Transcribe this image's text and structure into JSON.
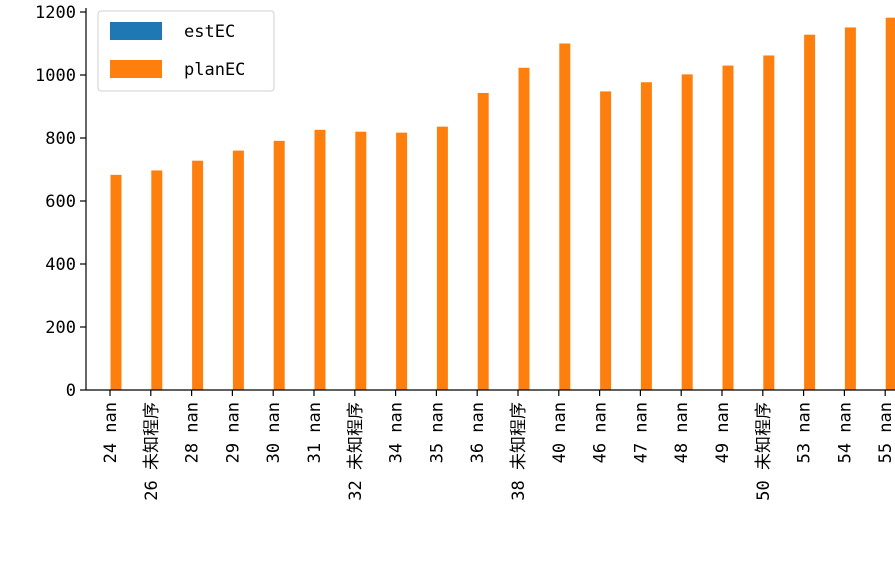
{
  "chart_data": {
    "type": "bar",
    "title": "",
    "xlabel": "",
    "ylabel": "",
    "ylim": [
      0,
      1200
    ],
    "yticks": [
      0,
      200,
      400,
      600,
      800,
      1000,
      1200
    ],
    "grid": false,
    "legend_position": "top-left",
    "categories": [
      [
        "24",
        "nan"
      ],
      [
        "26",
        "未知程序"
      ],
      [
        "28",
        "nan"
      ],
      [
        "29",
        "nan"
      ],
      [
        "30",
        "nan"
      ],
      [
        "31",
        "nan"
      ],
      [
        "32",
        "未知程序"
      ],
      [
        "34",
        "nan"
      ],
      [
        "35",
        "nan"
      ],
      [
        "36",
        "nan"
      ],
      [
        "38",
        "未知程序"
      ],
      [
        "40",
        "nan"
      ],
      [
        "46",
        "nan"
      ],
      [
        "47",
        "nan"
      ],
      [
        "48",
        "nan"
      ],
      [
        "49",
        "nan"
      ],
      [
        "50",
        "未知程序"
      ],
      [
        "53",
        "nan"
      ],
      [
        "54",
        "nan"
      ],
      [
        "55",
        "nan"
      ]
    ],
    "series": [
      {
        "name": "estEC",
        "color": "#1f77b4",
        "values": [
          0,
          0,
          0,
          0,
          0,
          0,
          0,
          0,
          0,
          0,
          0,
          0,
          0,
          0,
          0,
          0,
          0,
          0,
          0,
          0
        ]
      },
      {
        "name": "planEC",
        "color": "#ff7f0e",
        "values": [
          683,
          697,
          728,
          760,
          791,
          826,
          820,
          817,
          836,
          943,
          1023,
          1100,
          948,
          977,
          1002,
          1030,
          1062,
          1128,
          1151,
          1182
        ]
      }
    ]
  }
}
